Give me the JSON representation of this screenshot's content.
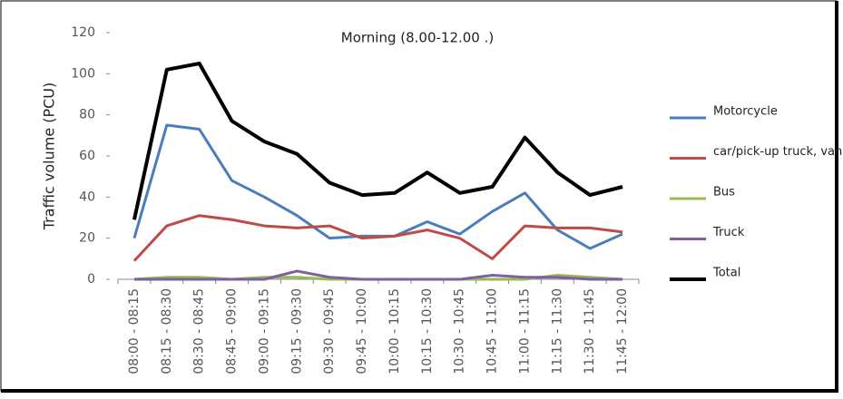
{
  "chart_data": {
    "type": "line",
    "title": "Morning (8.00-12.00 .)",
    "ylabel": "Traffic volume (PCU)",
    "categories": [
      "08:00 - 08:15",
      "08:15 - 08:30",
      "08:30 - 08:45",
      "08:45 - 09:00",
      "09:00 - 09:15",
      "09:15 - 09:30",
      "09:30 - 09:45",
      "09:45 - 10:00",
      "10:00 - 10:15",
      "10:15 - 10:30",
      "10:30 - 10:45",
      "10:45 - 11:00",
      "11:00 - 11:15",
      "11:15 - 11:30",
      "11:30 - 11:45",
      "11:45 - 12:00"
    ],
    "series": [
      {
        "name": "Motorcycle",
        "color": "#4a7ebb",
        "values": [
          20,
          75,
          73,
          48,
          40,
          31,
          20,
          21,
          21,
          28,
          22,
          33,
          42,
          24,
          15,
          22
        ]
      },
      {
        "name": "car/pick-up truck, van",
        "color": "#be4b48",
        "values": [
          9,
          26,
          31,
          29,
          26,
          25,
          26,
          20,
          21,
          24,
          20,
          10,
          26,
          25,
          25,
          23
        ]
      },
      {
        "name": "Bus",
        "color": "#98b954",
        "values": [
          0,
          1,
          1,
          0,
          1,
          1,
          0,
          0,
          0,
          0,
          0,
          0,
          0,
          2,
          1,
          0
        ]
      },
      {
        "name": "Truck",
        "color": "#7d60a0",
        "values": [
          0,
          0,
          0,
          0,
          0,
          4,
          1,
          0,
          0,
          0,
          0,
          2,
          1,
          1,
          0,
          0
        ]
      },
      {
        "name": "Total",
        "color": "#000000",
        "values": [
          29,
          102,
          105,
          77,
          67,
          61,
          47,
          41,
          42,
          52,
          42,
          45,
          69,
          52,
          41,
          45
        ]
      }
    ],
    "ylim": [
      0,
      120
    ],
    "yticks": [
      0,
      20,
      40,
      60,
      80,
      100,
      120
    ],
    "legend": "right"
  }
}
